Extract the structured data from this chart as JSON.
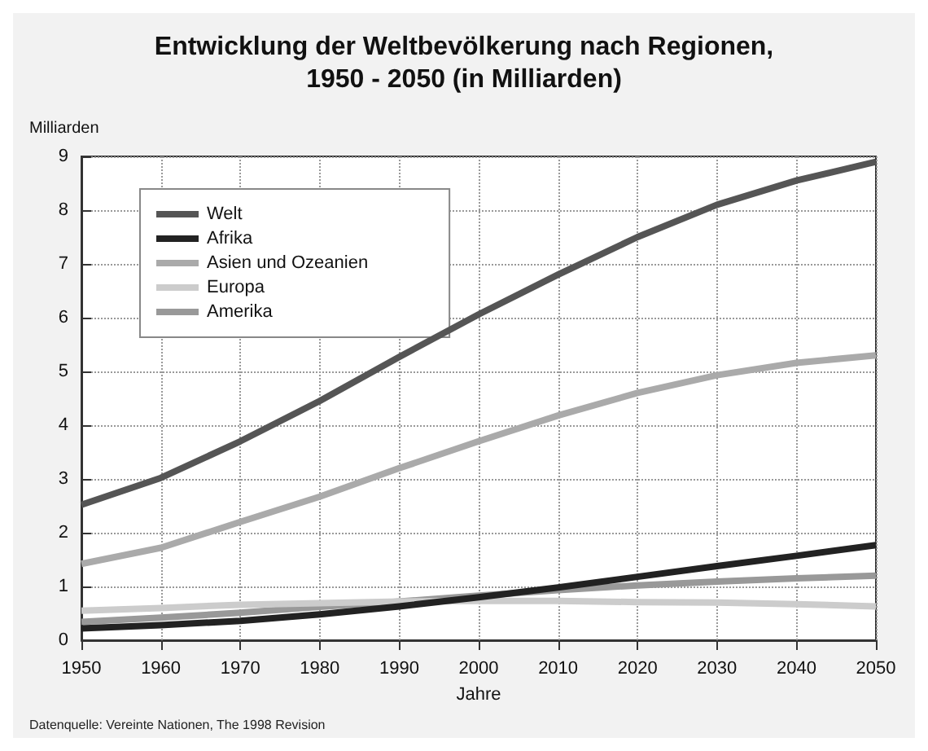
{
  "chart_data": {
    "type": "line",
    "title": "Entwicklung der Weltbevölkerung nach Regionen,\n1950 - 2050 (in Milliarden)",
    "ylabel": "Milliarden",
    "xlabel": "Jahre",
    "annotations": [
      "Datenquelle: Vereinte Nationen, The 1998 Revision"
    ],
    "x": [
      1950,
      1960,
      1970,
      1980,
      1990,
      2000,
      2010,
      2020,
      2030,
      2040,
      2050
    ],
    "series": [
      {
        "name": "Welt",
        "color": "#555555",
        "values": [
          2.52,
          3.02,
          3.7,
          4.45,
          5.27,
          6.06,
          6.8,
          7.5,
          8.1,
          8.55,
          8.9
        ]
      },
      {
        "name": "Afrika",
        "color": "#222222",
        "values": [
          0.22,
          0.28,
          0.36,
          0.48,
          0.63,
          0.8,
          0.98,
          1.18,
          1.38,
          1.57,
          1.77
        ]
      },
      {
        "name": "Asien und Ozeanien",
        "color": "#aaaaaa",
        "values": [
          1.42,
          1.72,
          2.2,
          2.67,
          3.2,
          3.7,
          4.18,
          4.6,
          4.93,
          5.16,
          5.3
        ]
      },
      {
        "name": "Europa",
        "color": "#cccccc",
        "values": [
          0.55,
          0.6,
          0.66,
          0.69,
          0.72,
          0.73,
          0.73,
          0.71,
          0.7,
          0.67,
          0.63
        ]
      },
      {
        "name": "Amerika",
        "color": "#999999",
        "values": [
          0.34,
          0.42,
          0.51,
          0.62,
          0.72,
          0.83,
          0.93,
          1.02,
          1.09,
          1.15,
          1.2
        ]
      }
    ],
    "xlim": [
      1950,
      2050
    ],
    "xticks": [
      1950,
      1960,
      1970,
      1980,
      1990,
      2000,
      2010,
      2020,
      2030,
      2040,
      2050
    ],
    "ylim": [
      0,
      9
    ],
    "yticks": [
      0,
      1,
      2,
      3,
      4,
      5,
      6,
      7,
      8,
      9
    ],
    "grid": true,
    "legend": "top left",
    "marker": "none",
    "line_style": "solid"
  }
}
